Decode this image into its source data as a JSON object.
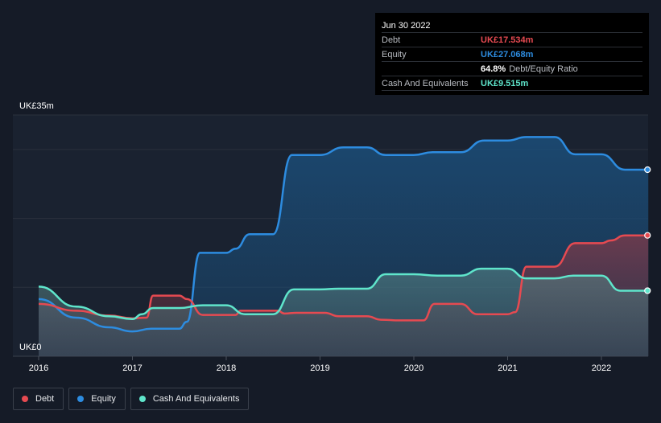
{
  "chart_data": {
    "type": "area",
    "ytick_top": "UK£35m",
    "ytick_bottom": "UK£0",
    "ylim": [
      0,
      35
    ],
    "x_ticks": [
      "2016",
      "2017",
      "2018",
      "2019",
      "2020",
      "2021",
      "2022"
    ],
    "xlim": [
      2016,
      2022.5
    ],
    "grid": true,
    "legend_placement": "bottom-left",
    "series": [
      {
        "name": "Debt",
        "key": "debt",
        "color": "#e64a51",
        "points": [
          [
            2016.0,
            7.6
          ],
          [
            2016.4,
            6.6
          ],
          [
            2016.75,
            5.9
          ],
          [
            2017.0,
            5.5
          ],
          [
            2017.15,
            5.6
          ],
          [
            2017.22,
            8.8
          ],
          [
            2017.5,
            8.8
          ],
          [
            2017.58,
            8.3
          ],
          [
            2017.75,
            6.0
          ],
          [
            2018.0,
            6.0
          ],
          [
            2018.1,
            6.0
          ],
          [
            2018.15,
            6.6
          ],
          [
            2018.55,
            6.6
          ],
          [
            2018.62,
            6.2
          ],
          [
            2018.75,
            6.3
          ],
          [
            2019.05,
            6.3
          ],
          [
            2019.2,
            5.8
          ],
          [
            2019.5,
            5.8
          ],
          [
            2019.65,
            5.3
          ],
          [
            2019.85,
            5.2
          ],
          [
            2020.0,
            5.2
          ],
          [
            2020.1,
            5.2
          ],
          [
            2020.22,
            7.6
          ],
          [
            2020.5,
            7.6
          ],
          [
            2020.68,
            6.1
          ],
          [
            2021.0,
            6.1
          ],
          [
            2021.08,
            6.4
          ],
          [
            2021.2,
            13.0
          ],
          [
            2021.5,
            13.0
          ],
          [
            2021.72,
            16.4
          ],
          [
            2022.0,
            16.4
          ],
          [
            2022.1,
            16.8
          ],
          [
            2022.25,
            17.534
          ],
          [
            2022.5,
            17.534
          ]
        ]
      },
      {
        "name": "Equity",
        "key": "equity",
        "color": "#2d8ce0",
        "points": [
          [
            2016.0,
            8.3
          ],
          [
            2016.4,
            5.6
          ],
          [
            2016.75,
            4.2
          ],
          [
            2017.0,
            3.6
          ],
          [
            2017.2,
            4.0
          ],
          [
            2017.5,
            4.0
          ],
          [
            2017.58,
            5.0
          ],
          [
            2017.72,
            15.0
          ],
          [
            2018.0,
            15.0
          ],
          [
            2018.1,
            15.6
          ],
          [
            2018.25,
            17.7
          ],
          [
            2018.5,
            17.7
          ],
          [
            2018.7,
            29.2
          ],
          [
            2019.0,
            29.2
          ],
          [
            2019.25,
            30.3
          ],
          [
            2019.5,
            30.3
          ],
          [
            2019.7,
            29.2
          ],
          [
            2020.0,
            29.2
          ],
          [
            2020.2,
            29.6
          ],
          [
            2020.5,
            29.6
          ],
          [
            2020.75,
            31.3
          ],
          [
            2021.0,
            31.3
          ],
          [
            2021.2,
            31.8
          ],
          [
            2021.5,
            31.8
          ],
          [
            2021.72,
            29.3
          ],
          [
            2022.0,
            29.3
          ],
          [
            2022.25,
            27.068
          ],
          [
            2022.5,
            27.068
          ]
        ]
      },
      {
        "name": "Cash And Equivalents",
        "key": "cash",
        "color": "#5fe5cb",
        "points": [
          [
            2016.0,
            10.1
          ],
          [
            2016.4,
            7.2
          ],
          [
            2016.75,
            5.8
          ],
          [
            2017.0,
            5.4
          ],
          [
            2017.1,
            6.1
          ],
          [
            2017.22,
            7.0
          ],
          [
            2017.5,
            7.0
          ],
          [
            2017.75,
            7.4
          ],
          [
            2018.0,
            7.4
          ],
          [
            2018.2,
            6.1
          ],
          [
            2018.5,
            6.1
          ],
          [
            2018.72,
            9.7
          ],
          [
            2019.0,
            9.7
          ],
          [
            2019.2,
            9.8
          ],
          [
            2019.5,
            9.8
          ],
          [
            2019.7,
            11.9
          ],
          [
            2020.0,
            11.9
          ],
          [
            2020.25,
            11.7
          ],
          [
            2020.5,
            11.7
          ],
          [
            2020.72,
            12.7
          ],
          [
            2021.0,
            12.7
          ],
          [
            2021.2,
            11.3
          ],
          [
            2021.5,
            11.3
          ],
          [
            2021.7,
            11.7
          ],
          [
            2022.0,
            11.7
          ],
          [
            2022.2,
            9.515
          ],
          [
            2022.5,
            9.515
          ]
        ]
      }
    ]
  },
  "tooltip": {
    "date": "Jun 30 2022",
    "rows": {
      "debt": {
        "label": "Debt",
        "value": "UK£17.534m",
        "color": "#e64a51"
      },
      "equity": {
        "label": "Equity",
        "value": "UK£27.068m",
        "color": "#2d8ce0"
      },
      "ratio": {
        "value": "64.8%",
        "label": "Debt/Equity Ratio"
      },
      "cash": {
        "label": "Cash And Equivalents",
        "value": "UK£9.515m",
        "color": "#5fe5cb"
      }
    }
  },
  "legend": [
    {
      "label": "Debt",
      "color": "#e64a51"
    },
    {
      "label": "Equity",
      "color": "#2d8ce0"
    },
    {
      "label": "Cash And Equivalents",
      "color": "#5fe5cb"
    }
  ]
}
